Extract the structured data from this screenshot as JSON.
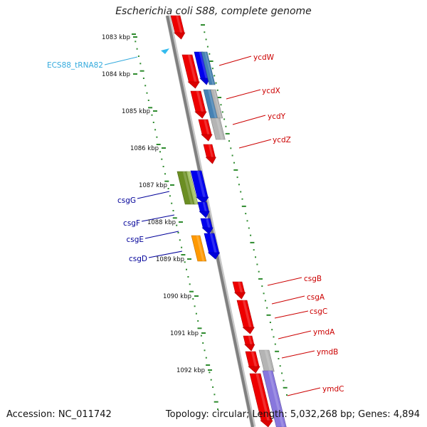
{
  "title": "Escherichia coli S88, complete genome",
  "footer": {
    "accession": "Accession: NC_011742",
    "summary": "Topology: circular; Length: 5,032,268 bp; Genes: 4,894"
  },
  "colors": {
    "backbone": "#808080",
    "tick": "#2e8b2e",
    "label_red": "#cc0000",
    "label_blue": "#000099",
    "label_trna": "#33aadd",
    "gene_red": "#ee0000",
    "gene_blue": "#0000ee",
    "gene_green": "#6b8e23",
    "gene_orange": "#ff9900",
    "gene_gray": "#b4b4b4",
    "gene_steel": "#4682b4",
    "gene_lavender": "#8877dd"
  },
  "scale": {
    "labels": [
      "1083 kbp",
      "1084 kbp",
      "1085 kbp",
      "1086 kbp",
      "1087 kbp",
      "1088 kbp",
      "1089 kbp",
      "1090 kbp",
      "1091 kbp",
      "1092 kbp"
    ]
  },
  "labels": [
    {
      "text": "ECS88_tRNA82",
      "color": "label_trna",
      "side": "left"
    },
    {
      "text": "ycdW",
      "color": "label_red",
      "side": "right"
    },
    {
      "text": "ycdX",
      "color": "label_red",
      "side": "right"
    },
    {
      "text": "ycdY",
      "color": "label_red",
      "side": "right"
    },
    {
      "text": "ycdZ",
      "color": "label_red",
      "side": "right"
    },
    {
      "text": "csgG",
      "color": "label_blue",
      "side": "left"
    },
    {
      "text": "csgF",
      "color": "label_blue",
      "side": "left"
    },
    {
      "text": "csgE",
      "color": "label_blue",
      "side": "left"
    },
    {
      "text": "csgD",
      "color": "label_blue",
      "side": "left"
    },
    {
      "text": "csgB",
      "color": "label_red",
      "side": "right"
    },
    {
      "text": "csgA",
      "color": "label_red",
      "side": "right"
    },
    {
      "text": "csgC",
      "color": "label_red",
      "side": "right"
    },
    {
      "text": "ymdA",
      "color": "label_red",
      "side": "right"
    },
    {
      "text": "ymdB",
      "color": "label_red",
      "side": "right"
    },
    {
      "text": "ymdC",
      "color": "label_red",
      "side": "right"
    }
  ]
}
